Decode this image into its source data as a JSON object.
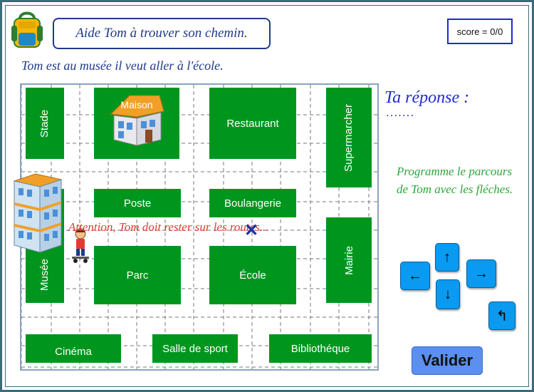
{
  "header": {
    "title": "Aide Tom à trouver son chemin.",
    "score": "score = 0/0"
  },
  "instruction": "Tom est au musée il veut aller à l'école.",
  "map": {
    "blocks": {
      "stade": "Stade",
      "maison": "Maison",
      "restaurant": "Restaurant",
      "supermarcher": "Supermarcher",
      "poste": "Poste",
      "boulangerie": "Boulangerie",
      "musee": "Musée",
      "parc": "Parc",
      "ecole": "École",
      "mairie": "Mairie",
      "cinema": "Cinéma",
      "salle_de_sport": "Salle de sport",
      "bibliotheque": "Bibliothéque"
    },
    "warning": "Attention, Tom doit rester sur les routes...",
    "goal_marker": "✕",
    "colors": {
      "block": "#00961e",
      "warning": "#e33b2f",
      "goal": "#1a2fa5"
    }
  },
  "answer": {
    "title": "Ta réponse :",
    "value": "......."
  },
  "program_hint": "Programme le parcours de Tom avec les fléches.",
  "controls": {
    "up": "↑",
    "down": "↓",
    "left": "←",
    "right": "→",
    "undo": "↰",
    "validate": "Valider"
  }
}
